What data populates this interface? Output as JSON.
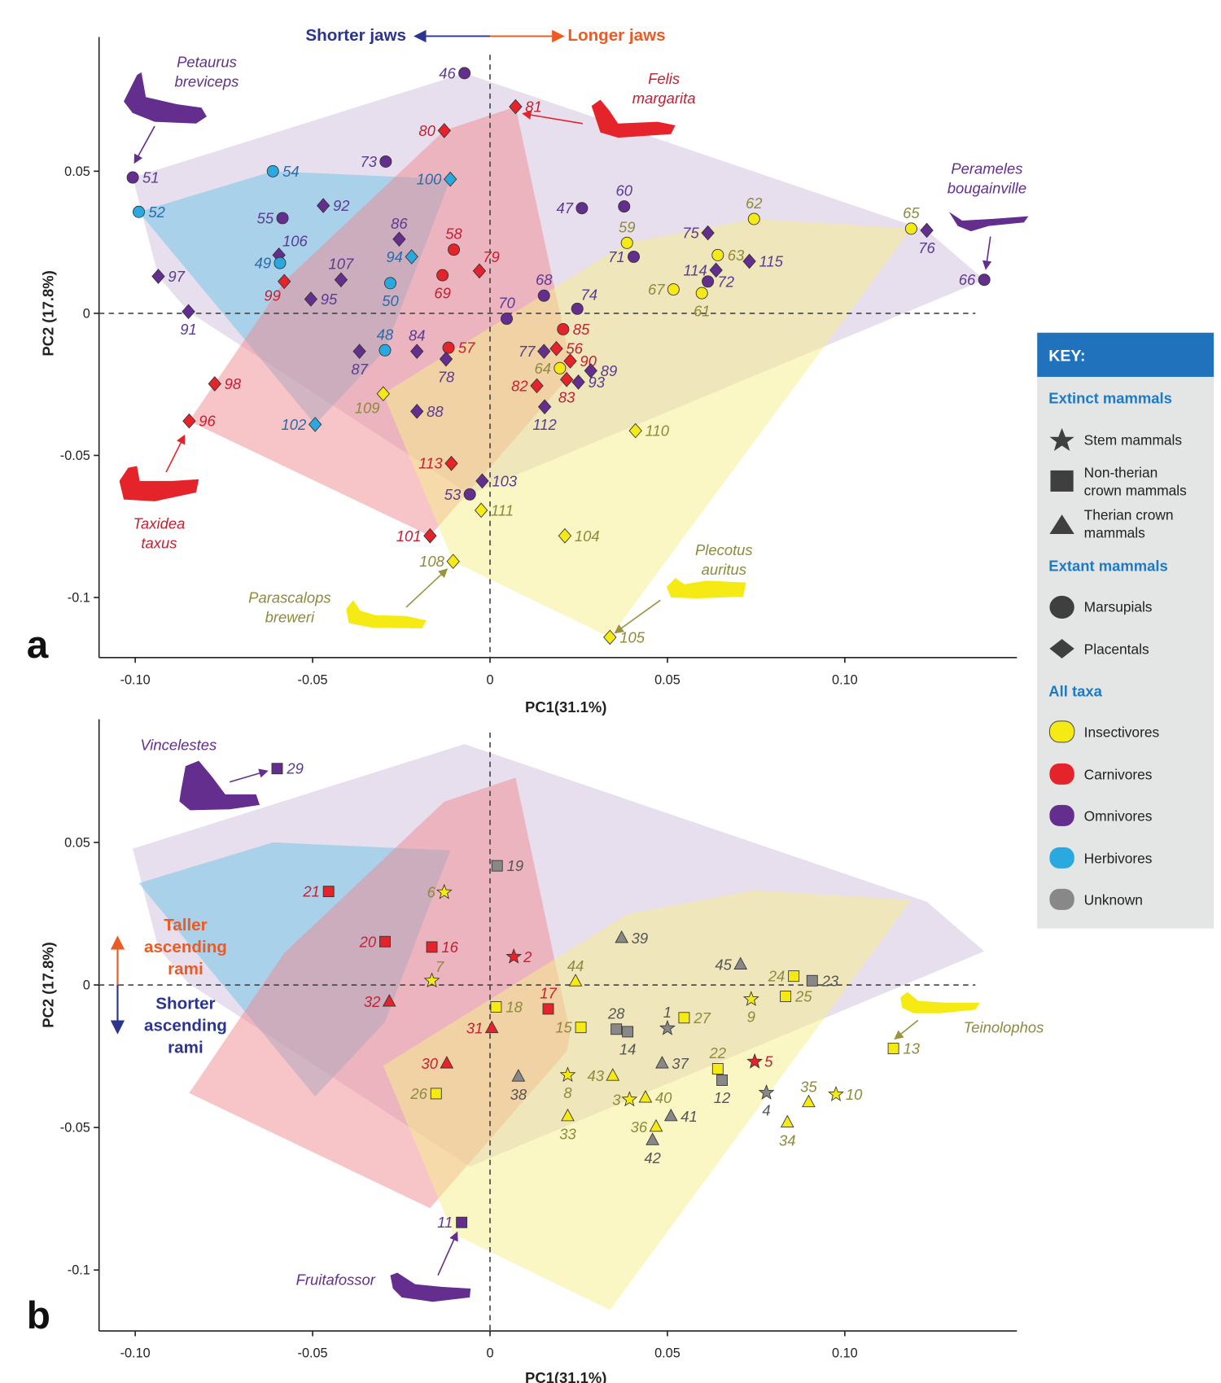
{
  "colors": {
    "I": "#f5ea14",
    "C": "#e5232a",
    "O": "#632e8e",
    "H": "#29a9df",
    "U": "#888888"
  },
  "label_colors": {
    "I": "#8d8a3c",
    "C": "#c42033",
    "O": "#5b3a91",
    "H": "#2a6aa8",
    "U": "#555555"
  },
  "hull_fill": {
    "I": "#f7ef8a",
    "C": "#f08a92",
    "O": "#c9b8d8",
    "H": "#6cc3e8"
  },
  "key": {
    "title": "KEY:",
    "extinct_heading": "Extinct mammals",
    "stem": "Stem mammals",
    "nontherian_1": "Non-therian",
    "nontherian_2": "crown mammals",
    "therian_1": "Therian crown",
    "therian_2": "mammals",
    "extant_heading": "Extant mammals",
    "marsupials": "Marsupials",
    "placentals": "Placentals",
    "all_heading": "All taxa",
    "insectivores": "Insectivores",
    "carnivores": "Carnivores",
    "omnivores": "Omnivores",
    "herbivores": "Herbivores",
    "unknown": "Unknown"
  },
  "annotations": {
    "shorter_jaws": "Shorter jaws",
    "longer_jaws": "Longer jaws",
    "taller_1": "Taller",
    "taller_2": "ascending",
    "taller_3": "rami",
    "shorter_1": "Shorter",
    "shorter_2": "ascending",
    "shorter_3": "rami",
    "petaurus_1": "Petaurus",
    "petaurus_2": "breviceps",
    "felis_1": "Felis",
    "felis_2": "margarita",
    "perameles_1": "Perameles",
    "perameles_2": "bougainville",
    "taxidea_1": "Taxidea",
    "taxidea_2": "taxus",
    "parascalops_1": "Parascalops",
    "parascalops_2": "breweri",
    "plecotus_1": "Plecotus",
    "plecotus_2": "auritus",
    "vincelestes": "Vincelestes",
    "teinolophos": "Teinolophos",
    "fruitafossor": "Fruitafossor"
  },
  "chart_data": [
    {
      "panel": "a",
      "type": "scatter",
      "xlabel": "PC1(31.1%)",
      "ylabel": "PC2 (17.8%)",
      "xlim": [
        -0.11,
        0.149
      ],
      "ylim": [
        -0.12,
        0.096
      ],
      "xticks": [
        "-0.10",
        "-0.05",
        "0",
        "0.05",
        "0.10"
      ],
      "xtick_values": [
        -0.1,
        -0.05,
        0,
        0.05,
        0.1
      ],
      "yticks": [
        "0.05",
        "0",
        "-0.05",
        "-0.1"
      ],
      "ytick_values": [
        0.05,
        0,
        -0.05,
        -0.1
      ],
      "grid": false,
      "points": [
        [
          "46",
          -0.0072,
          0.0845,
          "c",
          "O",
          "l"
        ],
        [
          "81",
          0.0072,
          0.0727,
          "d",
          "C",
          "r"
        ],
        [
          "80",
          -0.0129,
          0.0643,
          "d",
          "C",
          "l"
        ],
        [
          "73",
          -0.0294,
          0.0534,
          "c",
          "O",
          "l"
        ],
        [
          "54",
          -0.0612,
          0.05,
          "c",
          "H",
          "r"
        ],
        [
          "51",
          -0.1007,
          0.0478,
          "c",
          "O",
          "r"
        ],
        [
          "100",
          -0.0112,
          0.0472,
          "d",
          "H",
          "l"
        ],
        [
          "52",
          -0.099,
          0.0357,
          "c",
          "H",
          "r"
        ],
        [
          "92",
          -0.047,
          0.0379,
          "d",
          "O",
          "r"
        ],
        [
          "55",
          -0.0585,
          0.0335,
          "c",
          "O",
          "l"
        ],
        [
          "86",
          -0.0256,
          0.0261,
          "d",
          "O",
          "a"
        ],
        [
          "58",
          -0.0102,
          0.0224,
          "c",
          "C",
          "a"
        ],
        [
          "106",
          -0.0595,
          0.0205,
          "d",
          "O",
          "ar"
        ],
        [
          "49",
          -0.0592,
          0.0177,
          "c",
          "H",
          "l"
        ],
        [
          "94",
          -0.0221,
          0.0199,
          "d",
          "H",
          "l"
        ],
        [
          "79",
          -0.003,
          0.0149,
          "d",
          "C",
          "ar"
        ],
        [
          "69",
          -0.0134,
          0.0134,
          "c",
          "C",
          "b"
        ],
        [
          "97",
          -0.0935,
          0.013,
          "d",
          "O",
          "r"
        ],
        [
          "99",
          -0.058,
          0.0112,
          "d",
          "C",
          "bl"
        ],
        [
          "107",
          -0.042,
          0.0118,
          "d",
          "O",
          "a"
        ],
        [
          "95",
          -0.0505,
          0.005,
          "d",
          "O",
          "r"
        ],
        [
          "50",
          -0.0281,
          0.0106,
          "c",
          "H",
          "b"
        ],
        [
          "91",
          -0.085,
          0.0006,
          "d",
          "O",
          "b"
        ],
        [
          "70",
          0.0047,
          -0.0019,
          "c",
          "O",
          "a"
        ],
        [
          "68",
          0.0152,
          0.0062,
          "c",
          "O",
          "a"
        ],
        [
          "74",
          0.0246,
          0.0016,
          "c",
          "O",
          "ar"
        ],
        [
          "47",
          0.0259,
          0.037,
          "c",
          "O",
          "l"
        ],
        [
          "60",
          0.0378,
          0.0376,
          "c",
          "O",
          "a"
        ],
        [
          "59",
          0.0386,
          0.0248,
          "c",
          "I",
          "a"
        ],
        [
          "71",
          0.0405,
          0.0199,
          "c",
          "O",
          "l"
        ],
        [
          "62",
          0.0744,
          0.0332,
          "c",
          "I",
          "a"
        ],
        [
          "75",
          0.0614,
          0.0283,
          "d",
          "O",
          "l"
        ],
        [
          "63",
          0.0642,
          0.0205,
          "c",
          "I",
          "r"
        ],
        [
          "114",
          0.0637,
          0.0152,
          "d",
          "O",
          "l"
        ],
        [
          "115",
          0.0731,
          0.0183,
          "d",
          "O",
          "r"
        ],
        [
          "67",
          0.0517,
          0.0084,
          "c",
          "I",
          "l"
        ],
        [
          "61",
          0.0597,
          0.0071,
          "c",
          "I",
          "b"
        ],
        [
          "72",
          0.0614,
          0.0112,
          "c",
          "O",
          "r"
        ],
        [
          "65",
          0.1187,
          0.0298,
          "c",
          "I",
          "a"
        ],
        [
          "76",
          0.1231,
          0.0292,
          "d",
          "O",
          "b"
        ],
        [
          "66",
          0.1393,
          0.0118,
          "c",
          "O",
          "l"
        ],
        [
          "85",
          0.0206,
          -0.0056,
          "c",
          "C",
          "r"
        ],
        [
          "56",
          0.0187,
          -0.0124,
          "d",
          "C",
          "r"
        ],
        [
          "90",
          0.0226,
          -0.0168,
          "d",
          "C",
          "r"
        ],
        [
          "77",
          0.0152,
          -0.0134,
          "d",
          "O",
          "l"
        ],
        [
          "64",
          0.0197,
          -0.0193,
          "c",
          "I",
          "l"
        ],
        [
          "89",
          0.0284,
          -0.0202,
          "d",
          "O",
          "r"
        ],
        [
          "93",
          0.0249,
          -0.0242,
          "d",
          "O",
          "r"
        ],
        [
          "82",
          0.0132,
          -0.0255,
          "d",
          "C",
          "l"
        ],
        [
          "83",
          0.0216,
          -0.0233,
          "d",
          "C",
          "b"
        ],
        [
          "112",
          0.0154,
          -0.0329,
          "d",
          "O",
          "b"
        ],
        [
          "48",
          -0.0296,
          -0.013,
          "c",
          "H",
          "a"
        ],
        [
          "84",
          -0.0206,
          -0.0134,
          "d",
          "O",
          "a"
        ],
        [
          "87",
          -0.0368,
          -0.0134,
          "d",
          "O",
          "b"
        ],
        [
          "57",
          -0.0117,
          -0.0121,
          "c",
          "C",
          "r"
        ],
        [
          "78",
          -0.0124,
          -0.0161,
          "d",
          "O",
          "b"
        ],
        [
          "98",
          -0.0776,
          -0.0248,
          "d",
          "C",
          "r"
        ],
        [
          "96",
          -0.0848,
          -0.0379,
          "d",
          "C",
          "r"
        ],
        [
          "109",
          -0.0301,
          -0.0283,
          "d",
          "I",
          "bl"
        ],
        [
          "88",
          -0.0206,
          -0.0345,
          "d",
          "O",
          "r"
        ],
        [
          "102",
          -0.0493,
          -0.0391,
          "d",
          "H",
          "l"
        ],
        [
          "110",
          0.041,
          -0.0413,
          "d",
          "I",
          "r"
        ],
        [
          "113",
          -0.0109,
          -0.0528,
          "d",
          "C",
          "l"
        ],
        [
          "103",
          -0.0022,
          -0.059,
          "d",
          "O",
          "r"
        ],
        [
          "53",
          -0.0057,
          -0.0637,
          "c",
          "O",
          "l"
        ],
        [
          "111",
          -0.0025,
          -0.0693,
          "d",
          "I",
          "r"
        ],
        [
          "101",
          -0.0169,
          -0.0783,
          "d",
          "C",
          "l"
        ],
        [
          "104",
          0.0211,
          -0.0783,
          "d",
          "I",
          "r"
        ],
        [
          "108",
          -0.0104,
          -0.0873,
          "d",
          "I",
          "l"
        ],
        [
          "105",
          0.0338,
          -0.114,
          "d",
          "I",
          "r"
        ]
      ]
    },
    {
      "panel": "b",
      "type": "scatter",
      "xlabel": "PC1(31.1%)",
      "ylabel": "PC2 (17.8%)",
      "xlim": [
        -0.11,
        0.149
      ],
      "ylim": [
        -0.122,
        0.093
      ],
      "xticks": [
        "-0.10",
        "-0.05",
        "0",
        "0.05",
        "0.10"
      ],
      "xtick_values": [
        -0.1,
        -0.05,
        0,
        0.05,
        0.1
      ],
      "yticks": [
        "0.05",
        "0",
        "-0.05",
        "-0.1"
      ],
      "ytick_values": [
        0.05,
        0,
        -0.05,
        -0.1
      ],
      "grid": false,
      "points": [
        [
          "29",
          -0.06,
          0.0759,
          "s",
          "O",
          "r"
        ],
        [
          "19",
          0.002,
          0.0418,
          "s",
          "U",
          "r"
        ],
        [
          "21",
          -0.0455,
          0.0328,
          "s",
          "C",
          "l"
        ],
        [
          "6",
          -0.0129,
          0.0325,
          "*",
          "I",
          "l"
        ],
        [
          "20",
          -0.0296,
          0.0152,
          "s",
          "C",
          "l"
        ],
        [
          "16",
          -0.0164,
          0.0133,
          "s",
          "C",
          "r"
        ],
        [
          "2",
          0.0067,
          0.0099,
          "*",
          "C",
          "r"
        ],
        [
          "39",
          0.0371,
          0.0164,
          "t",
          "U",
          "r"
        ],
        [
          "44",
          0.0241,
          0.0012,
          "t",
          "I",
          "a"
        ],
        [
          "7",
          -0.0164,
          0.0015,
          "*",
          "I",
          "ar"
        ],
        [
          "45",
          0.0706,
          0.0071,
          "t",
          "U",
          "l"
        ],
        [
          "24",
          0.0856,
          0.0031,
          "s",
          "I",
          "l"
        ],
        [
          "23",
          0.0908,
          0.0015,
          "s",
          "U",
          "r"
        ],
        [
          "9",
          0.0736,
          -0.005,
          "*",
          "I",
          "b"
        ],
        [
          "25",
          0.0833,
          -0.004,
          "s",
          "I",
          "r"
        ],
        [
          "32",
          -0.0284,
          -0.0059,
          "t",
          "C",
          "l"
        ],
        [
          "17",
          0.0164,
          -0.0084,
          "s",
          "C",
          "a"
        ],
        [
          "18",
          0.0017,
          -0.0077,
          "s",
          "I",
          "r"
        ],
        [
          "31",
          0.0005,
          -0.0152,
          "t",
          "C",
          "l"
        ],
        [
          "15",
          0.0256,
          -0.0149,
          "s",
          "I",
          "l"
        ],
        [
          "28",
          0.0356,
          -0.0155,
          "s",
          "U",
          "a"
        ],
        [
          "14",
          0.0388,
          -0.0164,
          "s",
          "U",
          "b"
        ],
        [
          "1",
          0.05,
          -0.0152,
          "*",
          "U",
          "a"
        ],
        [
          "27",
          0.0547,
          -0.0115,
          "s",
          "I",
          "r"
        ],
        [
          "37",
          0.0485,
          -0.0276,
          "t",
          "U",
          "r"
        ],
        [
          "22",
          0.0642,
          -0.0294,
          "s",
          "I",
          "a"
        ],
        [
          "12",
          0.0654,
          -0.0334,
          "s",
          "U",
          "b"
        ],
        [
          "5",
          0.0746,
          -0.0269,
          "*",
          "C",
          "r"
        ],
        [
          "4",
          0.0779,
          -0.0378,
          "*",
          "U",
          "b"
        ],
        [
          "13",
          0.1137,
          -0.0223,
          "s",
          "I",
          "r"
        ],
        [
          "30",
          -0.0122,
          -0.0276,
          "t",
          "C",
          "l"
        ],
        [
          "38",
          0.008,
          -0.0322,
          "t",
          "U",
          "b"
        ],
        [
          "26",
          -0.0152,
          -0.0381,
          "s",
          "I",
          "l"
        ],
        [
          "8",
          0.0219,
          -0.0316,
          "*",
          "I",
          "b"
        ],
        [
          "43",
          0.0346,
          -0.0319,
          "t",
          "I",
          "l"
        ],
        [
          "3",
          0.0393,
          -0.0402,
          "*",
          "I",
          "l"
        ],
        [
          "40",
          0.0438,
          -0.0396,
          "t",
          "I",
          "r"
        ],
        [
          "41",
          0.051,
          -0.0461,
          "t",
          "U",
          "r"
        ],
        [
          "36",
          0.0468,
          -0.0498,
          "t",
          "I",
          "l"
        ],
        [
          "42",
          0.0458,
          -0.0545,
          "t",
          "U",
          "b"
        ],
        [
          "33",
          0.0219,
          -0.0461,
          "t",
          "I",
          "b"
        ],
        [
          "35",
          0.0898,
          -0.0412,
          "t",
          "I",
          "a"
        ],
        [
          "10",
          0.0975,
          -0.0384,
          "*",
          "I",
          "r"
        ],
        [
          "34",
          0.0838,
          -0.0483,
          "t",
          "I",
          "b"
        ],
        [
          "11",
          -0.008,
          -0.0833,
          "s",
          "O",
          "l"
        ]
      ]
    }
  ],
  "panel_labels": {
    "a": "a",
    "b": "b"
  }
}
